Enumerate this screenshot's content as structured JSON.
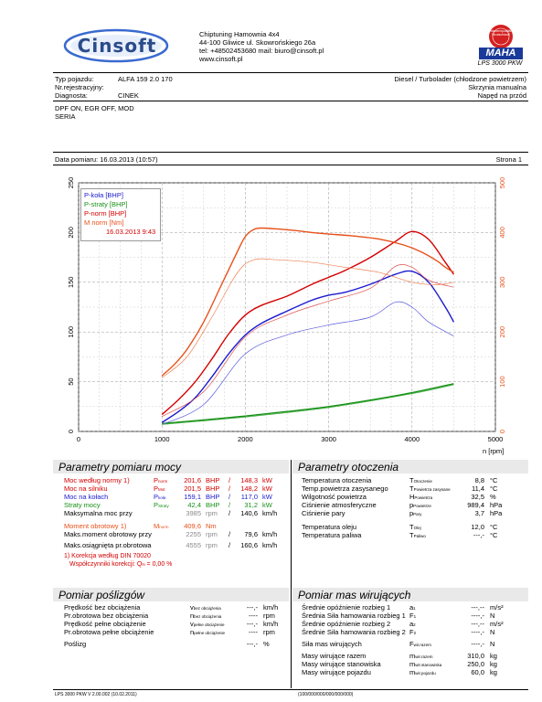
{
  "header": {
    "logo_text": "Cinsoft",
    "company": "Chiptuning Hamownia 4x4",
    "address": "44-100 Gliwice ul. Skowrońskiego 26a",
    "contact": "tel: +48502453680 mail: biuro@cinsoft.pl",
    "website": "www.cinsoft.pl",
    "maha_logo_text": "MAHA",
    "badge_text": "Markenqualität Deutschland",
    "model": "LPS 3000 PKW"
  },
  "vehicle": {
    "type_label": "Typ pojazdu:",
    "type_value": "ALFA 159 2.0 170",
    "reg_label": "Nr.rejestracyjny:",
    "reg_value": "",
    "diag_label": "Diagnosta:",
    "diag_value": "CINEK",
    "engine": "Diesel / Turbolader (chłodzone powietrzem)",
    "gearbox": "Skrzynia manualna",
    "drive": "Napęd na przód"
  },
  "notes": {
    "line1": "DPF ON, EGR OFF, MOD",
    "line2": "SERIA"
  },
  "measurement": {
    "date_text": "Data pomiaru: 16.03.2013 (10:57)",
    "page_text": "Strona 1"
  },
  "chart_data": {
    "type": "line",
    "xlabel": "n [rpm]",
    "xlim": [
      0,
      5000
    ],
    "ylim_left": [
      0,
      250
    ],
    "ylim_right": [
      0,
      500
    ],
    "x_ticks": [
      0,
      1000,
      2000,
      3000,
      4000,
      5000
    ],
    "y_ticks_left": [
      0,
      50,
      100,
      150,
      200,
      250
    ],
    "y_ticks_right": [
      0,
      100,
      200,
      300,
      400,
      500
    ],
    "legend": [
      {
        "label": "P-koła [BHP]",
        "color": "#1a1ad0"
      },
      {
        "label": "P-straty [BHP]",
        "color": "#169016"
      },
      {
        "label": "P-norm [BHP]",
        "color": "#d40000"
      },
      {
        "label": "M norm [Nm]",
        "color": "#e8501a"
      }
    ],
    "legend_date": "16.03.2013 9:43",
    "series": [
      {
        "name": "P-koła [BHP]",
        "axis": "left",
        "color": "#1a1ad0",
        "width": 1.4,
        "x": [
          1000,
          1200,
          1400,
          1600,
          1800,
          2000,
          2200,
          2500,
          2800,
          3000,
          3200,
          3500,
          3800,
          4000,
          4200,
          4400,
          4500
        ],
        "y": [
          9,
          20,
          34,
          55,
          78,
          97,
          109,
          121,
          132,
          137,
          140,
          148,
          158,
          161,
          150,
          125,
          110
        ]
      },
      {
        "name": "P-straty [BHP]",
        "axis": "left",
        "color": "#169016",
        "width": 1.4,
        "x": [
          1000,
          1500,
          2000,
          2500,
          3000,
          3500,
          4000,
          4500
        ],
        "y": [
          8,
          11.5,
          15.5,
          20,
          25,
          31.5,
          39,
          48
        ]
      },
      {
        "name": "P-norm [BHP]",
        "axis": "left",
        "color": "#d40000",
        "width": 1.4,
        "x": [
          1000,
          1200,
          1400,
          1600,
          1800,
          2000,
          2200,
          2500,
          2800,
          3000,
          3200,
          3500,
          3800,
          4000,
          4200,
          4400,
          4500
        ],
        "y": [
          17,
          32,
          50,
          73,
          98,
          117,
          127,
          136,
          148,
          155,
          162,
          175,
          191,
          201,
          193,
          170,
          158
        ]
      },
      {
        "name": "M norm [Nm]",
        "axis": "right",
        "color": "#e8501a",
        "width": 1.4,
        "x": [
          1000,
          1150,
          1300,
          1500,
          1700,
          1900,
          2000,
          2100,
          2200,
          2400,
          2600,
          2800,
          3000,
          3300,
          3600,
          3900,
          4100,
          4300,
          4400,
          4500
        ],
        "y": [
          112,
          135,
          165,
          220,
          290,
          360,
          392,
          406,
          409,
          407,
          404,
          400,
          397,
          393,
          387,
          375,
          362,
          343,
          330,
          320
        ]
      },
      {
        "name": "",
        "axis": "left",
        "color": "#5a5ae0",
        "width": 0.7,
        "x": [
          1000,
          1500,
          2000,
          2500,
          3000,
          3500,
          3800,
          4000,
          4200,
          4500
        ],
        "y": [
          7,
          27,
          78,
          97,
          107,
          115,
          130,
          125,
          110,
          96
        ]
      },
      {
        "name": "",
        "axis": "left",
        "color": "#e05050",
        "width": 0.7,
        "x": [
          1000,
          1500,
          2000,
          2500,
          3000,
          3500,
          3800,
          4000,
          4200,
          4500
        ],
        "y": [
          15,
          40,
          95,
          117,
          131,
          144,
          166,
          165,
          152,
          145
        ]
      },
      {
        "name": "",
        "axis": "right",
        "color": "#f08050",
        "width": 0.7,
        "x": [
          1000,
          1300,
          1600,
          1900,
          2100,
          2400,
          2800,
          3200,
          3600,
          4000,
          4300,
          4500
        ],
        "y": [
          108,
          150,
          230,
          318,
          345,
          345,
          340,
          330,
          320,
          300,
          295,
          300
        ]
      },
      {
        "name": "",
        "axis": "left",
        "color": "#3aa83a",
        "width": 0.7,
        "x": [
          1000,
          2000,
          3000,
          4000,
          4500
        ],
        "y": [
          7,
          14.5,
          24,
          38,
          47
        ]
      }
    ]
  },
  "measure_params": {
    "title": "Parametry pomiaru mocy",
    "rows": [
      {
        "label": "Moc według normy",
        "sup": "1)",
        "sym": "P",
        "sub": "norm",
        "v1": "201,6",
        "u1": "BHP",
        "sep": "/",
        "v2": "148,3",
        "u2": "kW",
        "cls": "red"
      },
      {
        "label": "Moc na silniku",
        "sup": "",
        "sym": "P",
        "sub": "Mot",
        "v1": "201,5",
        "u1": "BHP",
        "sep": "/",
        "v2": "148,2",
        "u2": "kW",
        "cls": "red"
      },
      {
        "label": "Moc na kołach",
        "sup": "",
        "sym": "P",
        "sub": "koła",
        "v1": "159,1",
        "u1": "BHP",
        "sep": "/",
        "v2": "117,0",
        "u2": "kW",
        "cls": "blue"
      },
      {
        "label": "Straty mocy",
        "sup": "",
        "sym": "P",
        "sub": "Straty",
        "v1": "42,4",
        "u1": "BHP",
        "sep": "/",
        "v2": "31,2",
        "u2": "kW",
        "cls": "green"
      },
      {
        "label": "Maksymalna moc przy",
        "sup": "",
        "sym": "",
        "sub": "",
        "v1": "3985",
        "u1": "rpm",
        "sep": "/",
        "v2": "140,6",
        "u2": "km/h",
        "cls": "mix"
      }
    ],
    "torque_row": {
      "label": "Moment obrotowy",
      "sup": "1)",
      "sym": "M",
      "sub": "norm",
      "v1": "409,6",
      "u1": "Nm"
    },
    "torque_rows": [
      {
        "label": "Maks.moment obrotowy przy",
        "v1": "2255",
        "u1": "rpm",
        "sep": "/",
        "v2": "79,6",
        "u2": "km/h"
      },
      {
        "label": "Maks.osiągnięta pr.obrotowa",
        "v1": "4555",
        "u1": "rpm",
        "sep": "/",
        "v2": "160,6",
        "u2": "km/h"
      }
    ],
    "footnote_1": "1) Korekcja według DIN 70020",
    "footnote_2": "Współczynniki korekcji: Q",
    "footnote_sub": "N",
    "footnote_3": " =   0,00 %"
  },
  "ambient": {
    "title": "Parametry otoczenia",
    "rows": [
      {
        "label": "Temperatura otoczenia",
        "sym": "T",
        "sub": "Otoczenie",
        "val": "8,8",
        "unit": "°C"
      },
      {
        "label": "Temp.powietrza zasysanego",
        "sym": "T",
        "sub": "Powietrza zasysane",
        "val": "11,4",
        "unit": "°C"
      },
      {
        "label": "Wilgotność powietrza",
        "sym": "H",
        "sub": "Powietrza",
        "val": "32,5",
        "unit": "%"
      },
      {
        "label": "Ciśnienie atmosferyczne",
        "sym": "p",
        "sub": "Powietrze",
        "val": "989,4",
        "unit": "hPa"
      },
      {
        "label": "Ciśnienie pary",
        "sym": "p",
        "sub": "Pary",
        "val": "3,7",
        "unit": "hPa"
      }
    ],
    "rows2": [
      {
        "label": "Temperatura oleju",
        "sym": "T",
        "sub": "Olej",
        "val": "12,0",
        "unit": "°C"
      },
      {
        "label": "Temperatura paliwa",
        "sym": "T",
        "sub": "Paliwo",
        "val": "---,-",
        "unit": "°C"
      }
    ]
  },
  "aux": {
    "title": "Pomiar poślizgów",
    "rows": [
      {
        "label": "Prędkość bez obciążenia",
        "sym": "v",
        "sub": "bez obciążenia",
        "val": "---,-",
        "unit": "km/h"
      },
      {
        "label": "Pr.obrotowa bez obciążenia",
        "sym": "n",
        "sub": "bez obciążenia",
        "val": "----",
        "unit": "rpm"
      },
      {
        "label": "Prędkość pełne obciążenie",
        "sym": "v",
        "sub": "pełne obciążenie",
        "val": "---,-",
        "unit": "km/h"
      },
      {
        "label": "Pr.obrotowa pełne obciążenie",
        "sym": "n",
        "sub": "pełne obciążenie",
        "val": "----",
        "unit": "rpm"
      }
    ],
    "slip": {
      "label": "Poślizg",
      "val": "---,-",
      "unit": "%"
    }
  },
  "inertia": {
    "title": "Pomiar mas wirujących",
    "rows": [
      {
        "label": "Średnie opóźnienie rozbieg 1",
        "sym": "a",
        "sub": "1",
        "val": "---,--",
        "unit": "m/s²"
      },
      {
        "label": "Średnia Siła hamowania rozbieg 1",
        "sym": "F",
        "sub": "1",
        "val": "----,-",
        "unit": "N"
      },
      {
        "label": "Średnie opóźnienie rozbieg 2",
        "sym": "a",
        "sub": "2",
        "val": "---,--",
        "unit": "m/s²"
      },
      {
        "label": "Średnie Siła hamowania rozbieg 2",
        "sym": "F",
        "sub": "2",
        "val": "----,-",
        "unit": "N"
      }
    ],
    "rows2": [
      {
        "label": "Siła mas wirujących",
        "sym": "F",
        "sub": "wir.razem",
        "val": "----,-",
        "unit": "N"
      }
    ],
    "rows3": [
      {
        "label": "Masy wirujące razem",
        "sym": "m",
        "sub": "wir.razem",
        "val": "310,0",
        "unit": "kg"
      },
      {
        "label": "Masy wirujące stanowiska",
        "sym": "m",
        "sub": "wir.stanowiska",
        "val": "250,0",
        "unit": "kg"
      },
      {
        "label": "Masy wirujące pojazdu",
        "sym": "m",
        "sub": "wir.pojazdu",
        "val": "60,0",
        "unit": "kg"
      }
    ]
  },
  "footer": {
    "version": "LPS 3000 PKW V 2.00.002 (10.02.2011)",
    "code": "(100/000/000/000/000/000)"
  }
}
